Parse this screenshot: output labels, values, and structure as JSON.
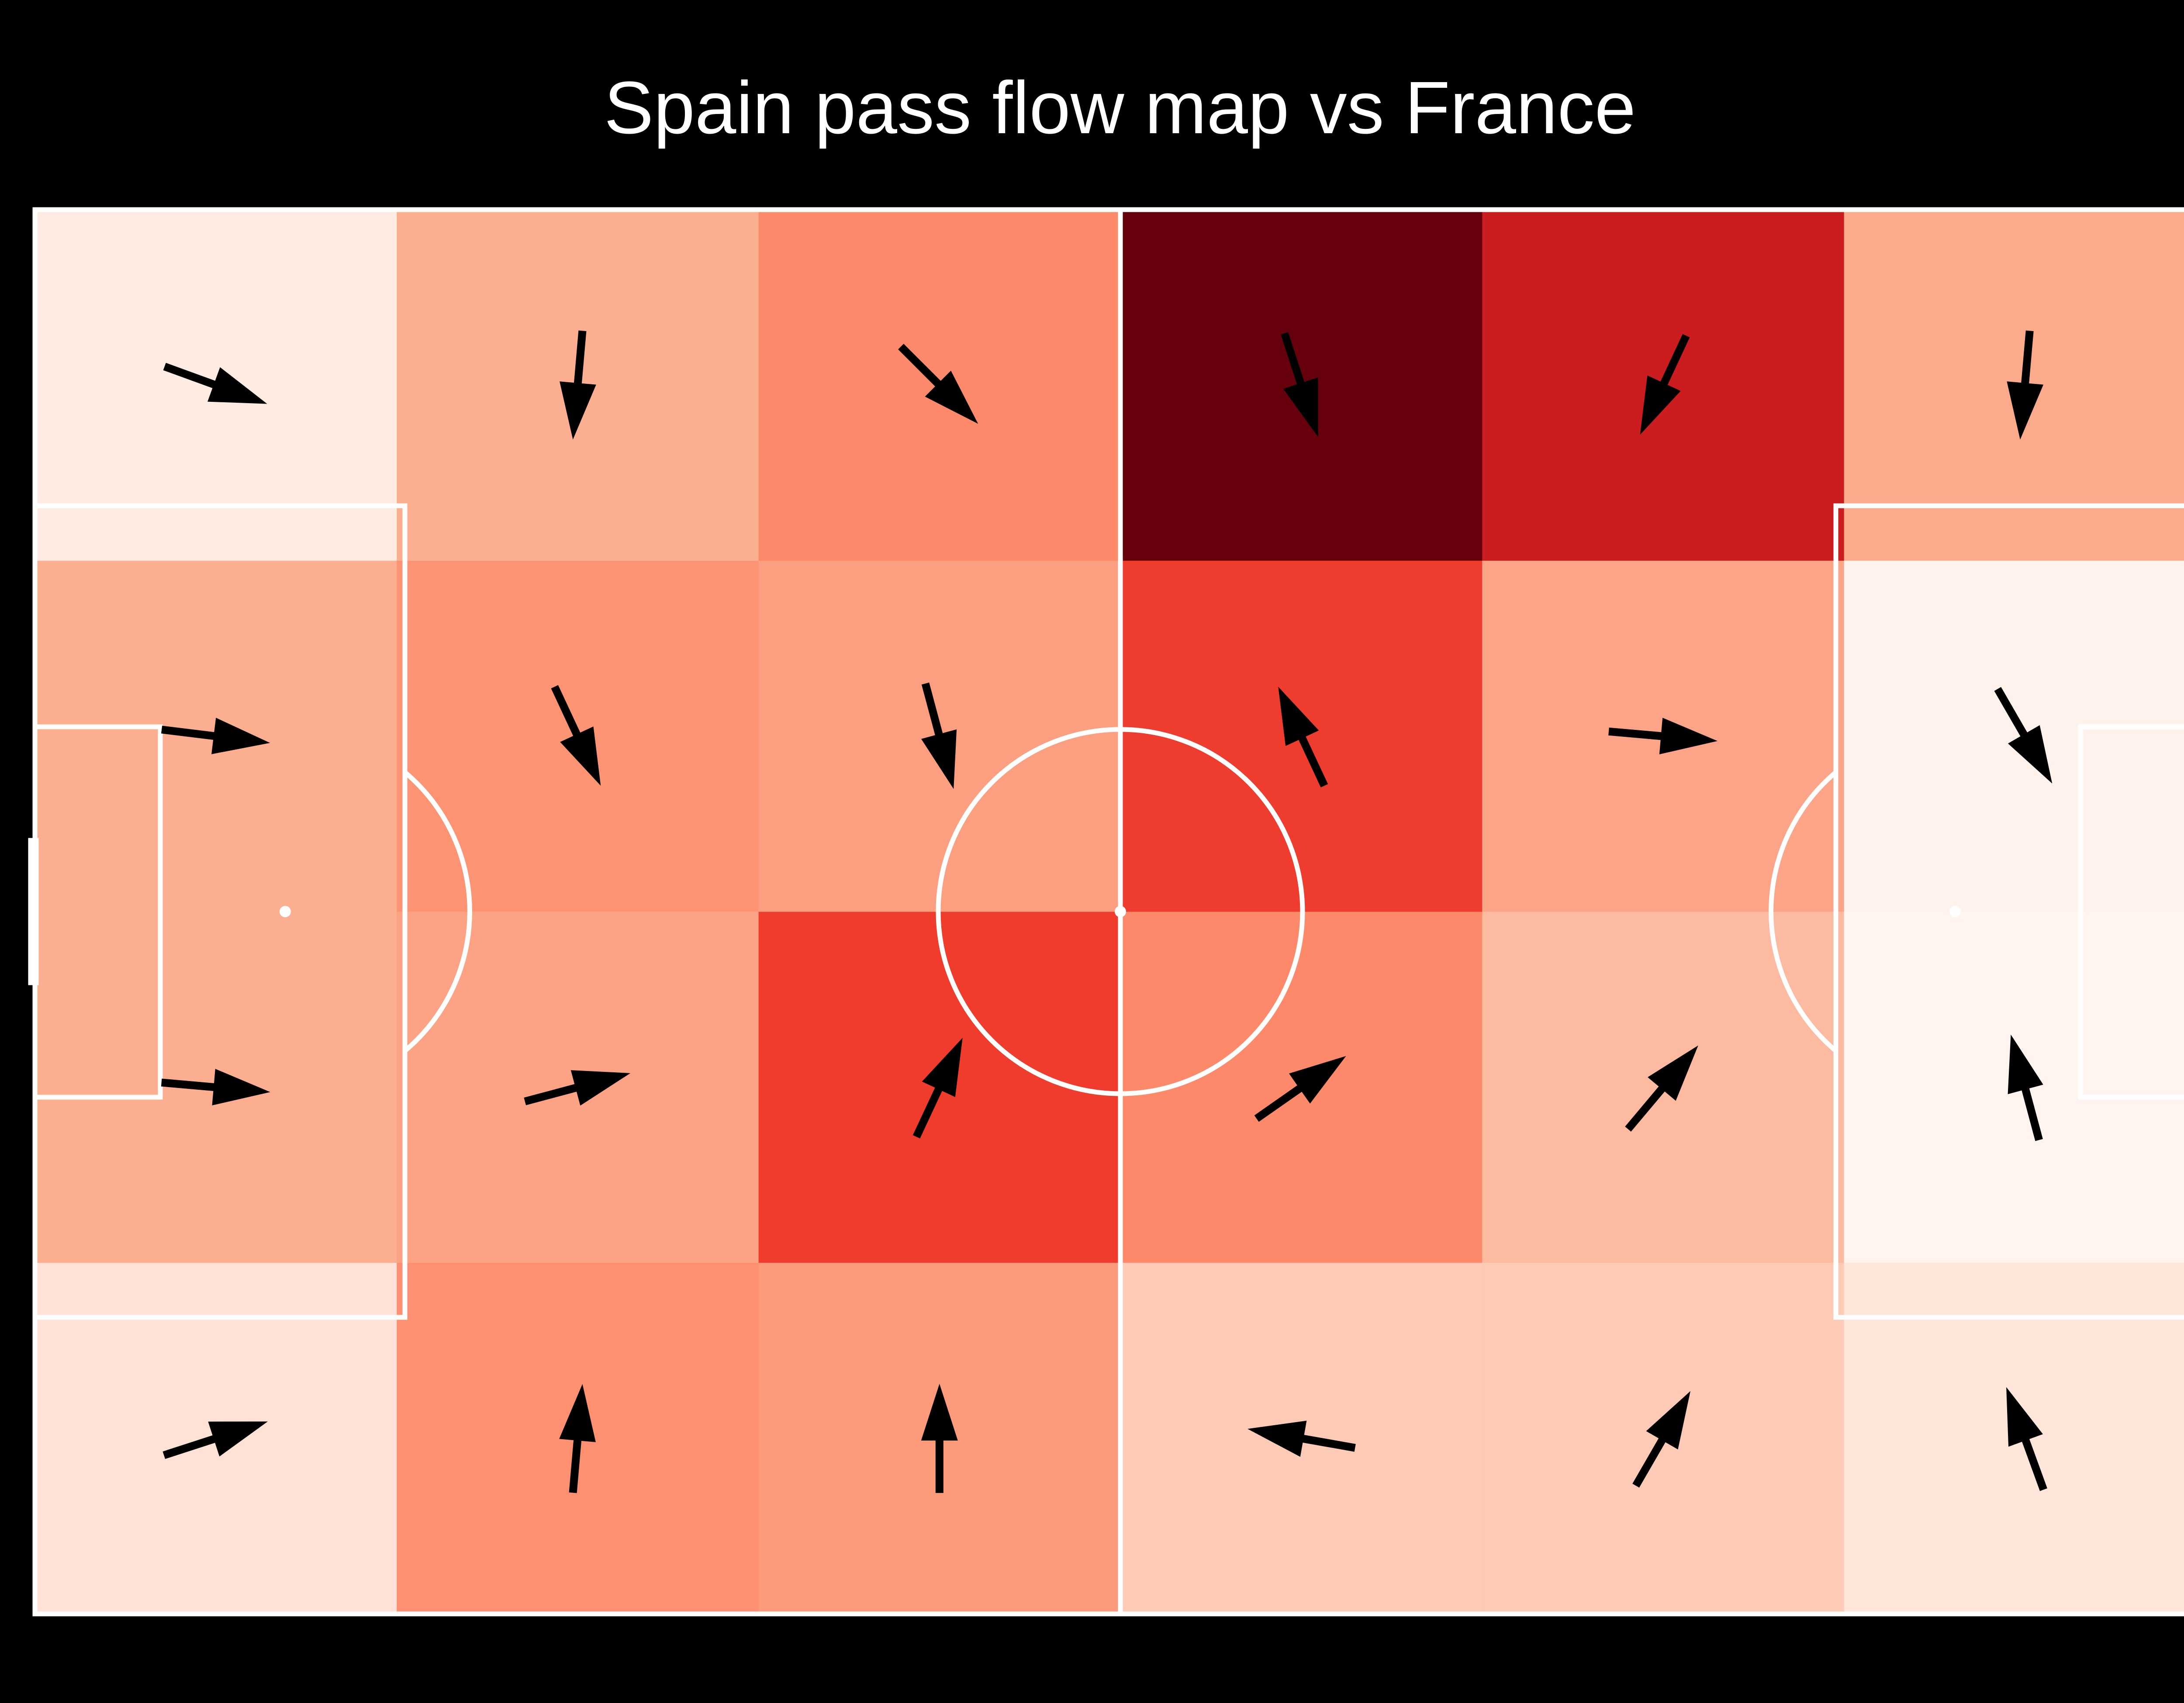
{
  "chart_data": {
    "type": "heatmap",
    "title": "Spain pass flow map vs France",
    "grid": {
      "columns": 6,
      "rows": 4
    },
    "colors": {
      "background": "#000000",
      "pitch_lines": "#ffffff",
      "arrows": "#000000",
      "heat_scale": [
        "#fff5f0",
        "#fee0d2",
        "#fcbba1",
        "#fc9272",
        "#fb6a4a",
        "#ef3b2c",
        "#cb181d",
        "#67000d"
      ]
    },
    "cells": [
      {
        "col": 0,
        "row": 0,
        "intensity": 0.05,
        "color": "#feece3",
        "angle_deg": 20
      },
      {
        "col": 1,
        "row": 0,
        "intensity": 0.28,
        "color": "#fcae91",
        "angle_deg": 95
      },
      {
        "col": 2,
        "row": 0,
        "intensity": 0.42,
        "color": "#fc8a6a",
        "angle_deg": 45
      },
      {
        "col": 3,
        "row": 0,
        "intensity": 1.0,
        "color": "#67000d",
        "angle_deg": 72
      },
      {
        "col": 4,
        "row": 0,
        "intensity": 0.82,
        "color": "#cb1c20",
        "angle_deg": 115
      },
      {
        "col": 5,
        "row": 0,
        "intensity": 0.3,
        "color": "#fcaa8c",
        "angle_deg": 95
      },
      {
        "col": 0,
        "row": 1,
        "intensity": 0.28,
        "color": "#fcae91",
        "angle_deg": 7
      },
      {
        "col": 1,
        "row": 1,
        "intensity": 0.38,
        "color": "#fc9474",
        "angle_deg": 65
      },
      {
        "col": 2,
        "row": 1,
        "intensity": 0.35,
        "color": "#fc9e80",
        "angle_deg": 75
      },
      {
        "col": 3,
        "row": 1,
        "intensity": 0.68,
        "color": "#ee3d2f",
        "angle_deg": -115
      },
      {
        "col": 4,
        "row": 1,
        "intensity": 0.33,
        "color": "#fca487",
        "angle_deg": 5
      },
      {
        "col": 5,
        "row": 1,
        "intensity": 0.03,
        "color": "#fff1eb",
        "angle_deg": 60
      },
      {
        "col": 0,
        "row": 2,
        "intensity": 0.28,
        "color": "#fcae91",
        "angle_deg": 5
      },
      {
        "col": 1,
        "row": 2,
        "intensity": 0.34,
        "color": "#fca385",
        "angle_deg": -15
      },
      {
        "col": 2,
        "row": 2,
        "intensity": 0.68,
        "color": "#ef3c2d",
        "angle_deg": -65
      },
      {
        "col": 3,
        "row": 2,
        "intensity": 0.42,
        "color": "#fc8a6a",
        "angle_deg": -35
      },
      {
        "col": 4,
        "row": 2,
        "intensity": 0.2,
        "color": "#fcbaa1",
        "angle_deg": -50
      },
      {
        "col": 5,
        "row": 2,
        "intensity": 0.02,
        "color": "#fff4ef",
        "angle_deg": -105
      },
      {
        "col": 0,
        "row": 3,
        "intensity": 0.1,
        "color": "#fee2d5",
        "angle_deg": -18
      },
      {
        "col": 1,
        "row": 3,
        "intensity": 0.4,
        "color": "#fc9070",
        "angle_deg": -85
      },
      {
        "col": 2,
        "row": 3,
        "intensity": 0.36,
        "color": "#fc9b7c",
        "angle_deg": -90
      },
      {
        "col": 3,
        "row": 3,
        "intensity": 0.15,
        "color": "#fdcab5",
        "angle_deg": -170
      },
      {
        "col": 4,
        "row": 3,
        "intensity": 0.15,
        "color": "#fdcab5",
        "angle_deg": -60
      },
      {
        "col": 5,
        "row": 3,
        "intensity": 0.07,
        "color": "#fee6da",
        "angle_deg": -110
      }
    ]
  }
}
